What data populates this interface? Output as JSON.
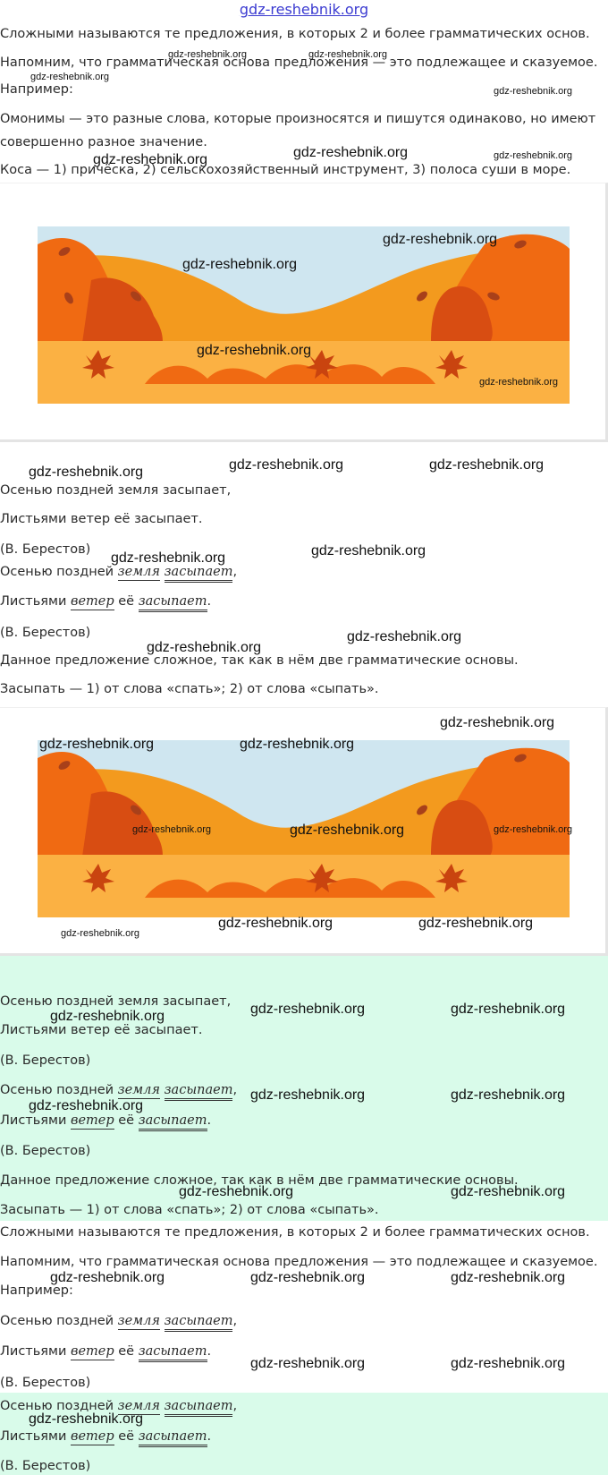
{
  "header": {
    "site": "gdz-reshebnik.org"
  },
  "watermark": "gdz-reshebnik.org",
  "text": {
    "complex_def": "Сложными называются те предложения, в которых 2 и более грамматических основ.",
    "reminder": "Напомним, что грамматическая основа предложения — это подлежащее и сказуемое.",
    "example": "Например:",
    "homonyms_1": "Омонимы — это разные слова, которые произносятся и пишутся одинаково, но имеют",
    "homonyms_2": "совершенно разное значение.",
    "kosa": "Коса — 1) причёска, 2) сельскохозяйственный инструмент, 3) полоса суши в море.",
    "poem_line1": "Осенью поздней земля засыпает,",
    "poem_line2": "Листьями ветер её засыпает.",
    "author": "(В. Берестов)",
    "l1_pre": "Осенью поздней",
    "l1_subj": "земля",
    "l1_pred": "засыпает",
    "l1_end": ",",
    "l2_pre": "Листьями",
    "l2_subj": "ветер",
    "l2_mid": "её",
    "l2_pred": "засыпает",
    "l2_end": ".",
    "conclusion": "Данное предложение сложное, так как в нём две грамматические основы.",
    "zasypat": "Засыпать — 1) от слова «спать»; 2) от слова «сыпать»."
  },
  "colors": {
    "sky": "#cfe6f0",
    "hill_far": "#f39a1e",
    "hill_near": "#f06a12",
    "ground": "#fbb143",
    "bush": "#d84d12",
    "green_block": "#d9fbea",
    "link": "#3b3bd1"
  }
}
